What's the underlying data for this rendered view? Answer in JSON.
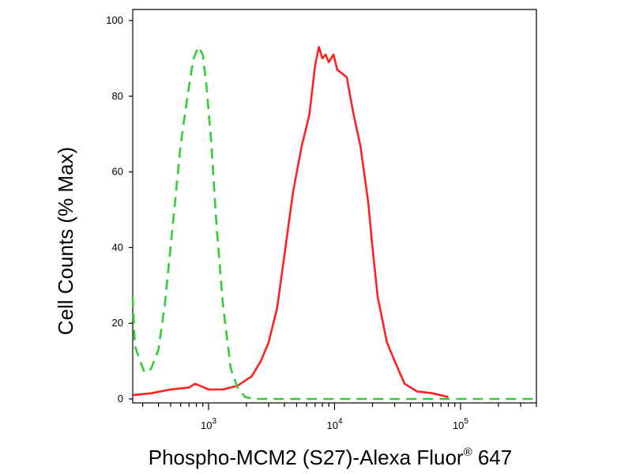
{
  "chart_data": {
    "type": "line",
    "xlabel": "Phospho-MCM2 (S27)-Alexa Fluor",
    "xlabel_sup": "®",
    "xlabel_suffix": " 647",
    "ylabel": "Cell Counts (% Max)",
    "x_scale": "log",
    "xlim": [
      250,
      400000
    ],
    "ylim": [
      0,
      100
    ],
    "y_ticks": [
      0,
      20,
      40,
      60,
      80,
      100
    ],
    "x_major_ticks": [
      {
        "value": 1000,
        "base": "10",
        "exp": "3"
      },
      {
        "value": 10000,
        "base": "10",
        "exp": "4"
      },
      {
        "value": 100000,
        "base": "10",
        "exp": "5"
      }
    ],
    "grid": false,
    "series": [
      {
        "color": "#ff2020",
        "style": "solid",
        "points": [
          [
            250,
            1
          ],
          [
            350,
            1.5
          ],
          [
            500,
            2.5
          ],
          [
            700,
            3
          ],
          [
            780,
            4
          ],
          [
            850,
            3.5
          ],
          [
            1000,
            2.5
          ],
          [
            1300,
            2.5
          ],
          [
            1700,
            3.5
          ],
          [
            2200,
            6
          ],
          [
            2600,
            10
          ],
          [
            3000,
            15
          ],
          [
            3500,
            24
          ],
          [
            4000,
            38
          ],
          [
            4700,
            55
          ],
          [
            5500,
            67
          ],
          [
            6300,
            75
          ],
          [
            7000,
            88
          ],
          [
            7500,
            93
          ],
          [
            8000,
            90
          ],
          [
            8500,
            91
          ],
          [
            9000,
            89
          ],
          [
            9800,
            91
          ],
          [
            10500,
            87
          ],
          [
            11500,
            86
          ],
          [
            12500,
            85
          ],
          [
            14000,
            76
          ],
          [
            16000,
            67
          ],
          [
            18500,
            52
          ],
          [
            20000,
            40
          ],
          [
            22000,
            27
          ],
          [
            26000,
            15
          ],
          [
            30000,
            10
          ],
          [
            36000,
            4
          ],
          [
            45000,
            2
          ],
          [
            60000,
            1.5
          ],
          [
            80000,
            0.5
          ]
        ]
      },
      {
        "color": "#33cc33",
        "style": "dashed",
        "points": [
          [
            250,
            27
          ],
          [
            260,
            14
          ],
          [
            280,
            11
          ],
          [
            310,
            7
          ],
          [
            350,
            8
          ],
          [
            400,
            13
          ],
          [
            450,
            25
          ],
          [
            520,
            46
          ],
          [
            600,
            67
          ],
          [
            680,
            80
          ],
          [
            760,
            90
          ],
          [
            830,
            93
          ],
          [
            900,
            91
          ],
          [
            960,
            83
          ],
          [
            1050,
            68
          ],
          [
            1150,
            47
          ],
          [
            1300,
            25
          ],
          [
            1500,
            8
          ],
          [
            1700,
            3
          ],
          [
            1950,
            0.5
          ],
          [
            2300,
            0
          ],
          [
            400000,
            0
          ]
        ]
      }
    ]
  }
}
